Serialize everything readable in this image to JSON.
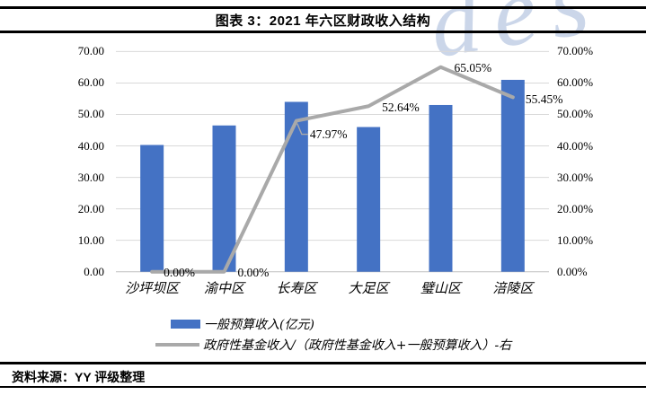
{
  "header": {
    "title": "图表 3：2021 年六区财政收入结构"
  },
  "watermark": {
    "text": "des"
  },
  "chart_data": {
    "type": "combo-bar-line",
    "title": "图表 3：2021 年六区财政收入结构",
    "categories": [
      "沙坪坝区",
      "渝中区",
      "长寿区",
      "大足区",
      "璧山区",
      "涪陵区"
    ],
    "series": [
      {
        "name": "一般预算收入(亿元)",
        "chart_type": "bar",
        "axis": "left",
        "color": "#4472C4",
        "values": [
          40.3,
          46.5,
          54.0,
          46.0,
          53.0,
          61.0
        ]
      },
      {
        "name": "政府性基金收入/（政府性基金收入+一般预算收入）-右",
        "chart_type": "line",
        "axis": "right",
        "color": "#A9A9A9",
        "values": [
          0.0,
          0.0,
          47.97,
          52.64,
          65.05,
          55.45
        ],
        "data_labels": [
          "0.00%",
          "0.00%",
          "47.97%",
          "52.64%",
          "65.05%",
          "55.45%"
        ]
      }
    ],
    "left_axis": {
      "min": 0,
      "max": 70,
      "step": 10,
      "tick_labels": [
        "0.00",
        "10.00",
        "20.00",
        "30.00",
        "40.00",
        "50.00",
        "60.00",
        "70.00"
      ]
    },
    "right_axis": {
      "min": 0,
      "max": 70,
      "step": 10,
      "tick_labels": [
        "0.00%",
        "10.00%",
        "20.00%",
        "30.00%",
        "40.00%",
        "50.00%",
        "60.00%",
        "70.00%"
      ]
    },
    "grid": true,
    "gridline_color": "#D9D9D9",
    "axis_line_color": "#BFBFBF",
    "legend_position": "bottom-left"
  },
  "footer": {
    "source": "资料来源：YY 评级整理"
  }
}
